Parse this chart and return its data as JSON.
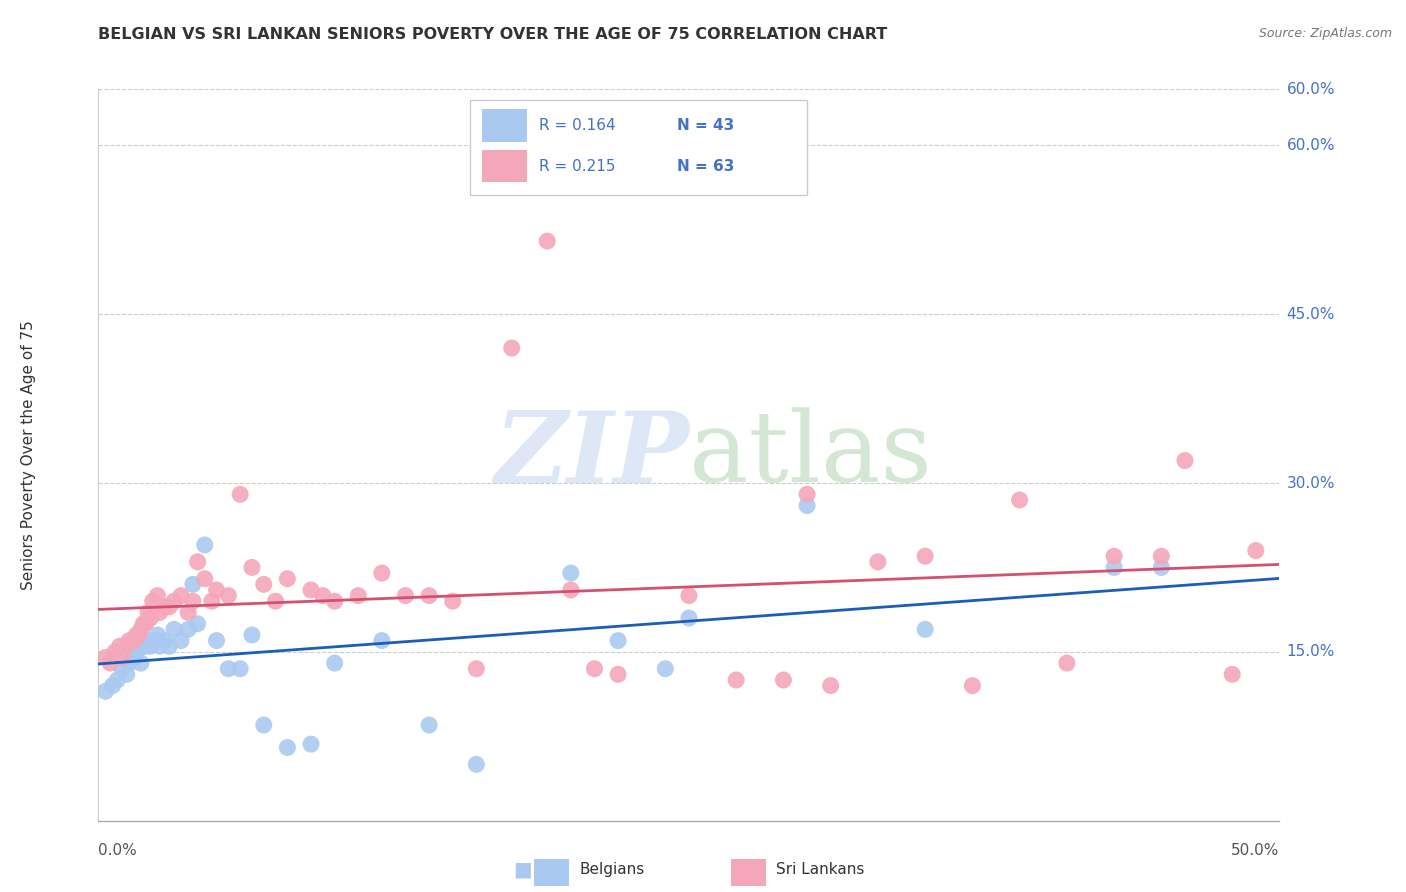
{
  "title": "BELGIAN VS SRI LANKAN SENIORS POVERTY OVER THE AGE OF 75 CORRELATION CHART",
  "source": "Source: ZipAtlas.com",
  "ylabel": "Seniors Poverty Over the Age of 75",
  "xlim": [
    0.0,
    0.5
  ],
  "ylim": [
    0.0,
    0.65
  ],
  "yticks": [
    0.15,
    0.3,
    0.45,
    0.6
  ],
  "ytick_labels": [
    "15.0%",
    "30.0%",
    "45.0%",
    "60.0%"
  ],
  "legend_r_belgian": "R = 0.164",
  "legend_n_belgian": "N = 43",
  "legend_r_srilankan": "R = 0.215",
  "legend_n_srilankan": "N = 63",
  "belgian_color": "#aac9f0",
  "srilankan_color": "#f4a7b9",
  "trendline_belgian_color": "#1a5eb8",
  "trendline_srilankan_color": "#d45070",
  "belgian_x": [
    0.003,
    0.006,
    0.008,
    0.01,
    0.012,
    0.013,
    0.015,
    0.016,
    0.018,
    0.019,
    0.02,
    0.021,
    0.022,
    0.024,
    0.025,
    0.026,
    0.028,
    0.03,
    0.032,
    0.035,
    0.038,
    0.04,
    0.042,
    0.045,
    0.05,
    0.055,
    0.06,
    0.065,
    0.07,
    0.08,
    0.09,
    0.1,
    0.12,
    0.14,
    0.16,
    0.2,
    0.22,
    0.24,
    0.25,
    0.3,
    0.35,
    0.43,
    0.45
  ],
  "belgian_y": [
    0.115,
    0.12,
    0.125,
    0.135,
    0.13,
    0.14,
    0.145,
    0.15,
    0.14,
    0.155,
    0.155,
    0.16,
    0.155,
    0.16,
    0.165,
    0.155,
    0.16,
    0.155,
    0.17,
    0.16,
    0.17,
    0.21,
    0.175,
    0.245,
    0.16,
    0.135,
    0.135,
    0.165,
    0.085,
    0.065,
    0.068,
    0.14,
    0.16,
    0.085,
    0.05,
    0.22,
    0.16,
    0.135,
    0.18,
    0.28,
    0.17,
    0.225,
    0.225
  ],
  "srilankan_x": [
    0.003,
    0.005,
    0.007,
    0.009,
    0.01,
    0.012,
    0.013,
    0.015,
    0.016,
    0.017,
    0.018,
    0.019,
    0.02,
    0.021,
    0.022,
    0.023,
    0.025,
    0.026,
    0.028,
    0.03,
    0.032,
    0.035,
    0.038,
    0.04,
    0.042,
    0.045,
    0.048,
    0.05,
    0.055,
    0.06,
    0.065,
    0.07,
    0.075,
    0.08,
    0.09,
    0.095,
    0.1,
    0.11,
    0.12,
    0.13,
    0.14,
    0.15,
    0.16,
    0.175,
    0.19,
    0.2,
    0.21,
    0.22,
    0.25,
    0.27,
    0.29,
    0.3,
    0.31,
    0.33,
    0.35,
    0.37,
    0.39,
    0.41,
    0.43,
    0.45,
    0.46,
    0.48,
    0.49
  ],
  "srilankan_y": [
    0.145,
    0.14,
    0.15,
    0.155,
    0.145,
    0.155,
    0.16,
    0.16,
    0.165,
    0.165,
    0.17,
    0.175,
    0.175,
    0.185,
    0.18,
    0.195,
    0.2,
    0.185,
    0.19,
    0.19,
    0.195,
    0.2,
    0.185,
    0.195,
    0.23,
    0.215,
    0.195,
    0.205,
    0.2,
    0.29,
    0.225,
    0.21,
    0.195,
    0.215,
    0.205,
    0.2,
    0.195,
    0.2,
    0.22,
    0.2,
    0.2,
    0.195,
    0.135,
    0.42,
    0.515,
    0.205,
    0.135,
    0.13,
    0.2,
    0.125,
    0.125,
    0.29,
    0.12,
    0.23,
    0.235,
    0.12,
    0.285,
    0.14,
    0.235,
    0.235,
    0.32,
    0.13,
    0.24
  ]
}
